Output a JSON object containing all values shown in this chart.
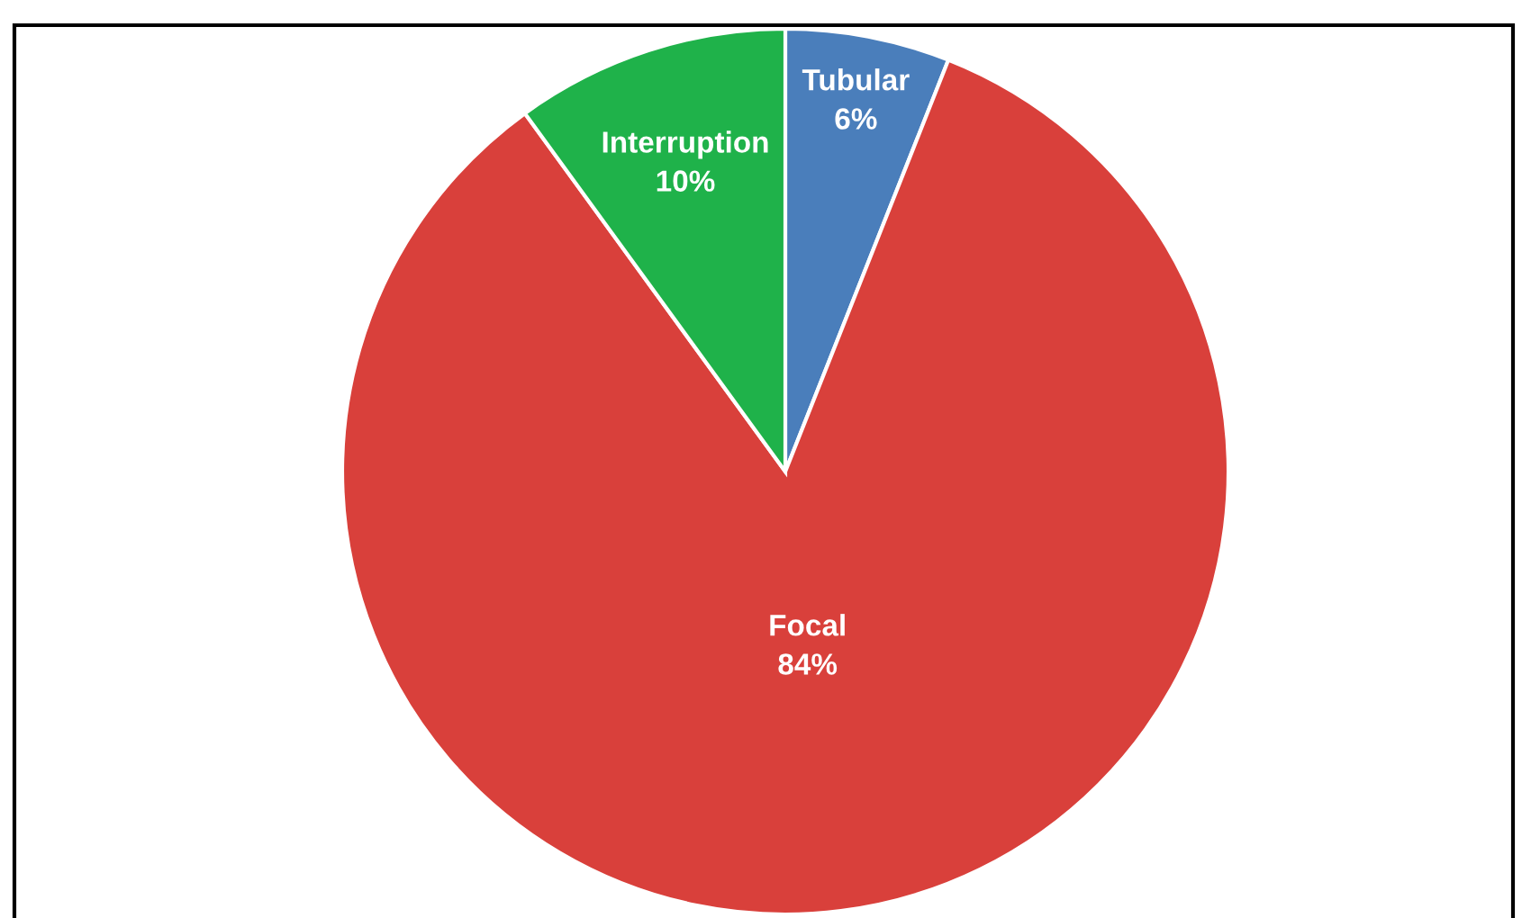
{
  "chart_data": {
    "type": "pie",
    "categories": [
      "Tubular",
      "Focal",
      "Interruption"
    ],
    "values": [
      6,
      84,
      10
    ],
    "value_labels": [
      "6%",
      "84%",
      "10%"
    ],
    "colors": [
      "#4a7ebb",
      "#d9403b",
      "#1fb24a"
    ],
    "legend": false
  }
}
